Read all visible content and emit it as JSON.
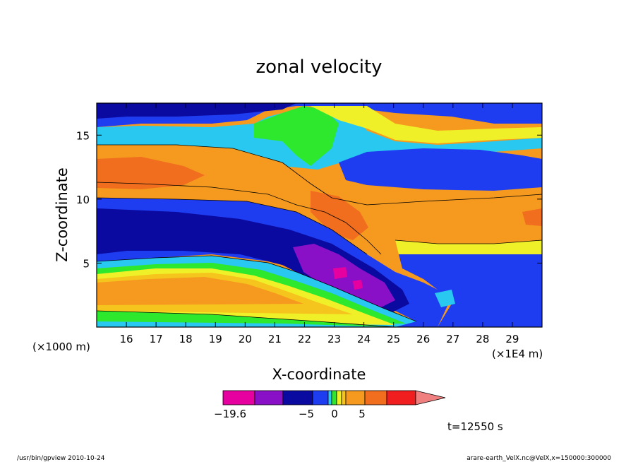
{
  "chart_data": {
    "type": "heatmap",
    "title": "zonal velocity",
    "xlabel": "X-coordinate",
    "ylabel": "Z-coordinate",
    "x_unit_label": "(×1E4 m)",
    "y_unit_label": "(×1000 m)",
    "x_ticks": [
      16,
      17,
      18,
      19,
      20,
      21,
      22,
      23,
      24,
      25,
      26,
      27,
      28,
      29
    ],
    "y_ticks": [
      5,
      10,
      15
    ],
    "xlim": [
      15,
      30
    ],
    "ylim": [
      0,
      17.5
    ],
    "grid": false,
    "colorbar": {
      "labels": [
        {
          "text": "−19.6",
          "value": -19.6
        },
        {
          "text": "−5",
          "value": -5
        },
        {
          "text": "0",
          "value": 0
        },
        {
          "text": "5",
          "value": 5
        }
      ],
      "colors": [
        "#e6009f",
        "#8a10c8",
        "#0a0aa0",
        "#1e3cf0",
        "#28c8f0",
        "#2ee82e",
        "#f0f028",
        "#f5c51e",
        "#f59a1e",
        "#f06e1e",
        "#f01e1e",
        "#f08080"
      ]
    },
    "time_label": "t=12550 s"
  },
  "footer": {
    "left": "/usr/bin/gpview   2010-10-24",
    "right": "arare-earth_VelX.nc@VelX,x=150000:300000"
  }
}
